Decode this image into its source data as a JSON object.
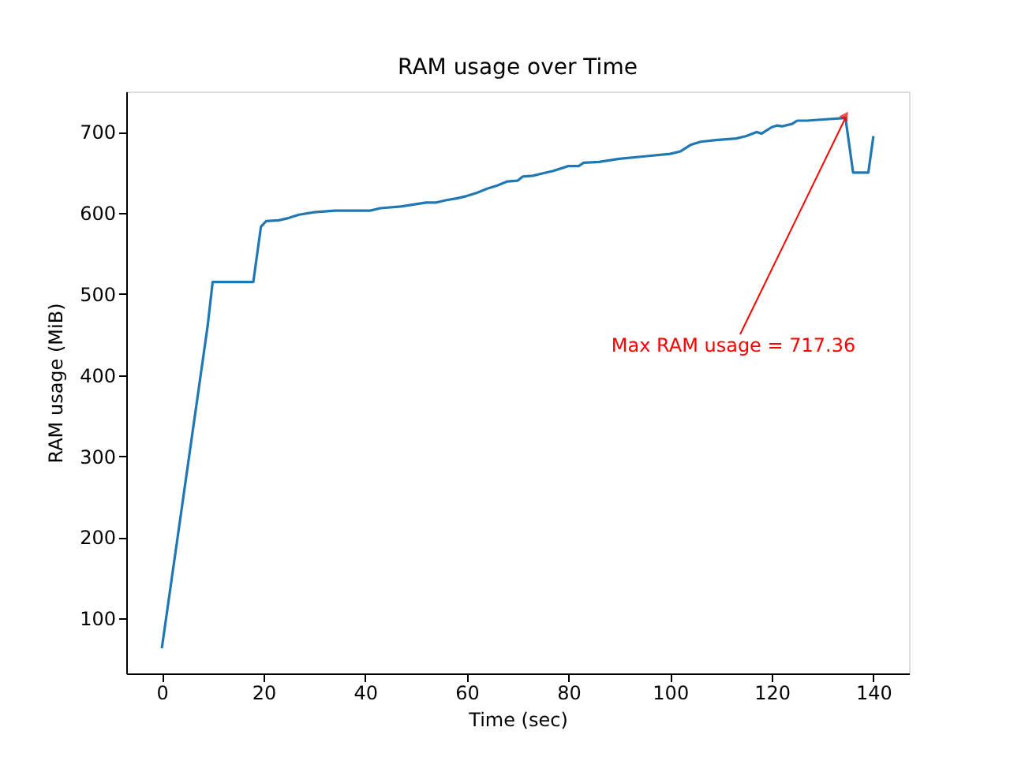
{
  "chart_data": {
    "type": "line",
    "title": "RAM usage over Time",
    "xlabel": "Time (sec)",
    "ylabel": "RAM usage (MiB)",
    "x": [
      0,
      9,
      10,
      18,
      19.5,
      20.5,
      23,
      25,
      27,
      30,
      34,
      41,
      43,
      47,
      50,
      52,
      54,
      56,
      58,
      60,
      62,
      64,
      66,
      68,
      70,
      71,
      73,
      75,
      77,
      79,
      80,
      82,
      83,
      86,
      88,
      90,
      95,
      100,
      102,
      104,
      106,
      109,
      111,
      113,
      115,
      117,
      118,
      120,
      121,
      122,
      124,
      125,
      127,
      129,
      134.5,
      136,
      139,
      140
    ],
    "series": [
      {
        "color": "#1f77b4",
        "values": [
          63,
          460,
          515,
          515,
          583,
          590,
          591,
          594,
          598,
          601,
          603,
          603,
          606,
          608,
          611,
          613,
          613,
          616,
          618,
          621,
          625,
          630,
          634,
          639,
          640,
          645,
          646,
          649,
          652,
          656,
          658,
          658,
          662,
          663,
          665,
          667,
          670,
          673,
          676,
          684,
          688,
          690,
          691,
          692,
          695,
          700,
          698,
          706,
          708,
          707,
          710,
          714,
          714,
          715,
          717.36,
          650,
          650,
          695
        ]
      }
    ],
    "xlim": [
      -7,
      147
    ],
    "xticks": [
      0,
      20,
      40,
      60,
      80,
      100,
      120,
      140
    ],
    "ylim": [
      32,
      750
    ],
    "yticks": [
      100,
      200,
      300,
      400,
      500,
      600,
      700
    ],
    "annotations": [
      {
        "text": "Max RAM usage = 717.36",
        "x": 134.5,
        "y": 717.36
      }
    ],
    "grid": false,
    "marker": "none",
    "line_style": "solid"
  }
}
